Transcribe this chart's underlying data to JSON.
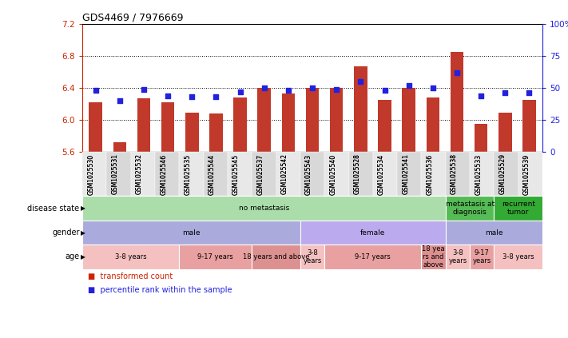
{
  "title": "GDS4469 / 7976669",
  "samples": [
    "GSM1025530",
    "GSM1025531",
    "GSM1025532",
    "GSM1025546",
    "GSM1025535",
    "GSM1025544",
    "GSM1025545",
    "GSM1025537",
    "GSM1025542",
    "GSM1025543",
    "GSM1025540",
    "GSM1025528",
    "GSM1025534",
    "GSM1025541",
    "GSM1025536",
    "GSM1025538",
    "GSM1025533",
    "GSM1025529",
    "GSM1025539"
  ],
  "transformed_count": [
    6.22,
    5.72,
    6.27,
    6.22,
    6.09,
    6.08,
    6.28,
    6.4,
    6.33,
    6.4,
    6.4,
    6.67,
    6.25,
    6.4,
    6.28,
    6.85,
    5.95,
    6.09,
    6.25
  ],
  "percentile_rank": [
    48,
    40,
    49,
    44,
    43,
    43,
    47,
    50,
    48,
    50,
    49,
    55,
    48,
    52,
    50,
    62,
    44,
    46,
    46
  ],
  "ylim_left": [
    5.6,
    7.2
  ],
  "ylim_right": [
    0,
    100
  ],
  "yticks_left": [
    5.6,
    6.0,
    6.4,
    6.8,
    7.2
  ],
  "yticks_right": [
    0,
    25,
    50,
    75,
    100
  ],
  "ytick_labels_left": [
    "5.6",
    "6.0",
    "6.4",
    "6.8",
    "7.2"
  ],
  "ytick_labels_right": [
    "0",
    "25",
    "50",
    "75",
    "100%"
  ],
  "bar_color": "#c0392b",
  "dot_color": "#2222dd",
  "bar_bottom": 5.6,
  "grid_lines": [
    6.0,
    6.4,
    6.8
  ],
  "disease_state_groups": [
    {
      "label": "no metastasis",
      "start": 0,
      "end": 15,
      "color": "#aaddaa"
    },
    {
      "label": "metastasis at\ndiagnosis",
      "start": 15,
      "end": 17,
      "color": "#55bb55"
    },
    {
      "label": "recurrent\ntumor",
      "start": 17,
      "end": 19,
      "color": "#33aa33"
    }
  ],
  "gender_groups": [
    {
      "label": "male",
      "start": 0,
      "end": 9,
      "color": "#aaaadd"
    },
    {
      "label": "female",
      "start": 9,
      "end": 15,
      "color": "#bbaaee"
    },
    {
      "label": "male",
      "start": 15,
      "end": 19,
      "color": "#aaaadd"
    }
  ],
  "age_groups": [
    {
      "label": "3-8 years",
      "start": 0,
      "end": 4,
      "color": "#f4c0c0"
    },
    {
      "label": "9-17 years",
      "start": 4,
      "end": 7,
      "color": "#e8a0a0"
    },
    {
      "label": "18 years and above",
      "start": 7,
      "end": 9,
      "color": "#dd9090"
    },
    {
      "label": "3-8\nyears",
      "start": 9,
      "end": 10,
      "color": "#f4c0c0"
    },
    {
      "label": "9-17 years",
      "start": 10,
      "end": 14,
      "color": "#e8a0a0"
    },
    {
      "label": "18 yea\nrs and\nabove",
      "start": 14,
      "end": 15,
      "color": "#dd9090"
    },
    {
      "label": "3-8\nyears",
      "start": 15,
      "end": 16,
      "color": "#f4c0c0"
    },
    {
      "label": "9-17\nyears",
      "start": 16,
      "end": 17,
      "color": "#e8a0a0"
    },
    {
      "label": "3-8 years",
      "start": 17,
      "end": 19,
      "color": "#f4c0c0"
    }
  ],
  "row_labels": [
    "disease state",
    "gender",
    "age"
  ],
  "left_axis_color": "#cc2200",
  "right_axis_color": "#2222dd",
  "legend_items": [
    {
      "label": "transformed count",
      "color": "#cc2200"
    },
    {
      "label": "percentile rank within the sample",
      "color": "#2222dd"
    }
  ]
}
